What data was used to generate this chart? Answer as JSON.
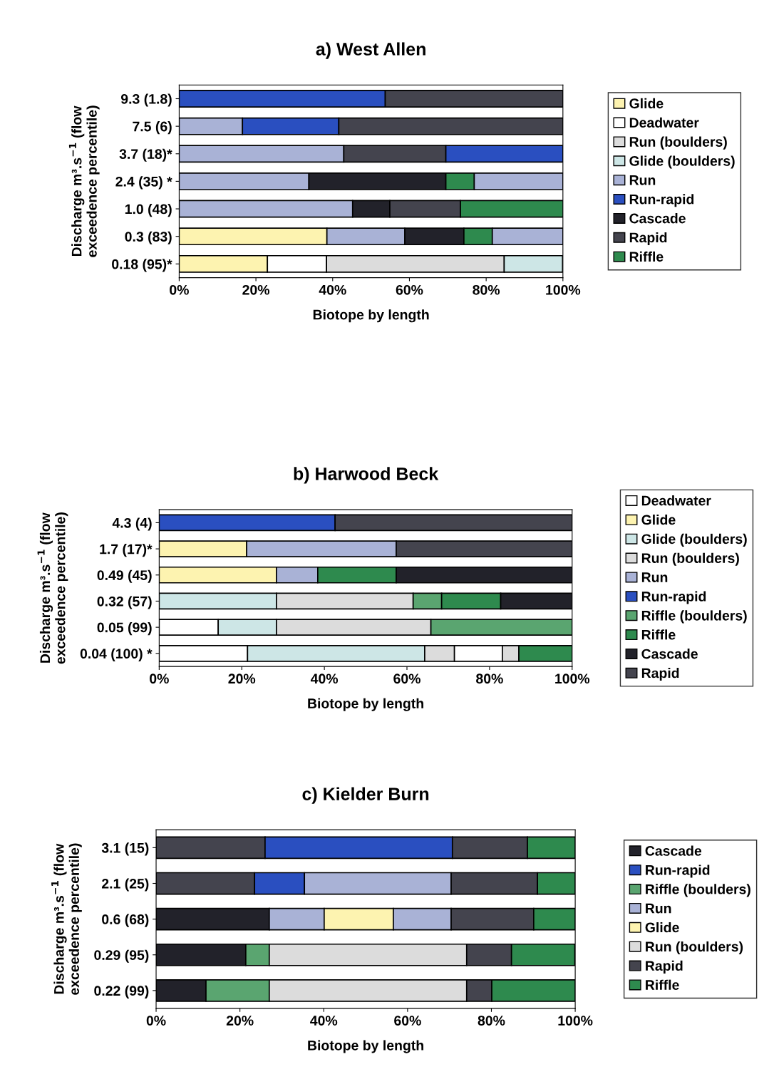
{
  "chart_data": [
    {
      "type": "bar",
      "orientation": "horizontal",
      "stacked": true,
      "title": "a) West Allen",
      "xlabel": "Biotope by length",
      "ylabel": "Discharge m³.s$^{−1}$ (flow\nexceedence percentile)",
      "categories": [
        "9.3 (1.8)",
        "7.5 (6)",
        "3.7 (18)*",
        "2.4 (35) *",
        "1.0 (48)",
        "0.3 (83)",
        "0.18 (95)*"
      ],
      "xlim": [
        0,
        100
      ],
      "xticks": [
        {
          "value": 0,
          "label": "0%"
        },
        {
          "value": 20,
          "label": "20%"
        },
        {
          "value": 40,
          "label": "40%"
        },
        {
          "value": 60,
          "label": "60%"
        },
        {
          "value": 80,
          "label": "80%"
        },
        {
          "value": 100,
          "label": "100%"
        }
      ],
      "grid": false,
      "legend": "right",
      "series": [
        {
          "name": "Glide",
          "color": "#fdf3b0",
          "values": [
            null,
            null,
            null,
            null,
            null,
            38.5,
            23
          ]
        },
        {
          "name": "Deadwater",
          "color": "#ffffff",
          "values": [
            null,
            null,
            null,
            null,
            null,
            null,
            15.4
          ]
        },
        {
          "name": "Run (boulders)",
          "color": "#dcdcdc",
          "values": [
            null,
            null,
            null,
            null,
            null,
            null,
            46.3
          ]
        },
        {
          "name": "Glide (boulders)",
          "color": "#cde6e6",
          "values": [
            null,
            null,
            null,
            null,
            null,
            null,
            15.2
          ]
        },
        {
          "name": "Run",
          "color": "#a9b2d6",
          "values": [
            null,
            16.5,
            42.9,
            33.8,
            45.2,
            20.3,
            null
          ]
        },
        {
          "name": "Run-rapid",
          "color": "#2a4fc0",
          "values": [
            53.7,
            25.1,
            null,
            null,
            null,
            null,
            null
          ]
        },
        {
          "name": "Cascade",
          "color": "#22222a",
          "values": [
            null,
            null,
            null,
            35.7,
            9.7,
            15.4,
            null
          ]
        },
        {
          "name": "Rapid",
          "color": "#44444e",
          "values": [
            46.3,
            58.4,
            26.6,
            null,
            18.4,
            null,
            null
          ]
        },
        {
          "name": "Riffle",
          "color": "#2e8a4e",
          "values": [
            null,
            null,
            null,
            7.4,
            26.8,
            7.4,
            null
          ]
        },
        {
          "color": "#a9b2d6",
          "values": [
            null,
            null,
            null,
            23.1,
            null,
            18.4,
            null
          ]
        },
        {
          "color": "#2a4fc0",
          "values": [
            null,
            null,
            30.5,
            null,
            null,
            null,
            null
          ]
        }
      ]
    },
    {
      "type": "bar",
      "orientation": "horizontal",
      "stacked": true,
      "title": "b) Harwood Beck",
      "xlabel": "Biotope by length",
      "ylabel": "Discharge m³.s$^{−1}$ (flow\nexceedence percentile)",
      "categories": [
        "4.3 (4)",
        "1.7 (17)*",
        "0.49 (45)",
        "0.32 (57)",
        "0.05 (99)",
        "0.04 (100) *"
      ],
      "xlim": [
        0,
        100
      ],
      "xticks": [
        {
          "value": 0,
          "label": "0%"
        },
        {
          "value": 20,
          "label": "20%"
        },
        {
          "value": 40,
          "label": "40%"
        },
        {
          "value": 60,
          "label": "60%"
        },
        {
          "value": 80,
          "label": "80%"
        },
        {
          "value": 100,
          "label": "100%"
        }
      ],
      "grid": false,
      "legend": "right",
      "series": [
        {
          "name": "Deadwater",
          "color": "#ffffff",
          "values": [
            null,
            null,
            null,
            null,
            14.3,
            21.4
          ]
        },
        {
          "name": "Glide",
          "color": "#fdf3b0",
          "values": [
            null,
            21.2,
            28.4,
            null,
            null,
            null
          ]
        },
        {
          "name": "Glide (boulders)",
          "color": "#cde6e6",
          "values": [
            null,
            null,
            null,
            28.4,
            14.1,
            42.9
          ]
        },
        {
          "name": "Run (boulders)",
          "color": "#dcdcdc",
          "values": [
            null,
            null,
            null,
            33.1,
            37.4,
            7.2
          ]
        },
        {
          "name": "Run",
          "color": "#a9b2d6",
          "values": [
            null,
            36.2,
            10,
            null,
            null,
            null
          ]
        },
        {
          "name": "Run-rapid",
          "color": "#2a4fc0",
          "values": [
            42.6,
            null,
            null,
            null,
            null,
            null
          ]
        },
        {
          "name": "Riffle (boulders)",
          "color": "#5aa570",
          "values": [
            null,
            null,
            null,
            6.9,
            34.2,
            null
          ]
        },
        {
          "color": "#ffffff",
          "values": [
            null,
            null,
            null,
            null,
            null,
            11.6
          ]
        },
        {
          "color": "#dcdcdc",
          "values": [
            null,
            null,
            null,
            null,
            null,
            4
          ]
        },
        {
          "name": "Riffle",
          "color": "#2e8a4e",
          "values": [
            null,
            null,
            19,
            14.3,
            null,
            12.9
          ]
        },
        {
          "name": "Cascade",
          "color": "#22222a",
          "values": [
            null,
            null,
            42.6,
            17.3,
            null,
            null
          ]
        },
        {
          "name": "Rapid",
          "color": "#44444e",
          "values": [
            57.4,
            42.6,
            null,
            null,
            null,
            null
          ]
        }
      ]
    },
    {
      "type": "bar",
      "orientation": "horizontal",
      "stacked": true,
      "title": "c) Kielder Burn",
      "xlabel": "Biotope by length",
      "ylabel": "Discharge m³.s$^{−1}$ (flow\nexceedence percentile)",
      "categories": [
        "3.1 (15)",
        "2.1 (25)",
        "0.6 (68)",
        "0.29 (95)",
        "0.22 (99)"
      ],
      "xlim": [
        0,
        100
      ],
      "xticks": [
        {
          "value": 0,
          "label": "0%"
        },
        {
          "value": 20,
          "label": "20%"
        },
        {
          "value": 40,
          "label": "40%"
        },
        {
          "value": 60,
          "label": "60%"
        },
        {
          "value": 80,
          "label": "80%"
        },
        {
          "value": 100,
          "label": "100%"
        }
      ],
      "grid": false,
      "legend": "right",
      "series": [
        {
          "color": "#44444e",
          "values": [
            26,
            23.5,
            null,
            null,
            null
          ]
        },
        {
          "name": "Cascade",
          "color": "#22222a",
          "values": [
            null,
            null,
            27,
            21.4,
            11.9
          ]
        },
        {
          "name": "Run-rapid",
          "color": "#2a4fc0",
          "values": [
            44.7,
            11.9,
            null,
            null,
            null
          ]
        },
        {
          "name": "Riffle (boulders)",
          "color": "#5aa570",
          "values": [
            null,
            null,
            null,
            5.6,
            15.1
          ]
        },
        {
          "name": "Run",
          "color": "#a9b2d6",
          "values": [
            null,
            35,
            13.1,
            null,
            null
          ]
        },
        {
          "name": "Glide",
          "color": "#fdf3b0",
          "values": [
            null,
            null,
            16.5,
            null,
            null
          ]
        },
        {
          "color": "#a9b2d6",
          "values": [
            null,
            null,
            13.8,
            null,
            null
          ]
        },
        {
          "name": "Run (boulders)",
          "color": "#dcdcdc",
          "values": [
            null,
            null,
            null,
            47.1,
            47.1
          ]
        },
        {
          "name": "Rapid",
          "color": "#44444e",
          "values": [
            17.9,
            20.6,
            19.7,
            10.7,
            6
          ]
        },
        {
          "name": "Riffle",
          "color": "#2e8a4e",
          "values": [
            11.4,
            9,
            9.9,
            15.1,
            19.9
          ]
        }
      ]
    }
  ]
}
